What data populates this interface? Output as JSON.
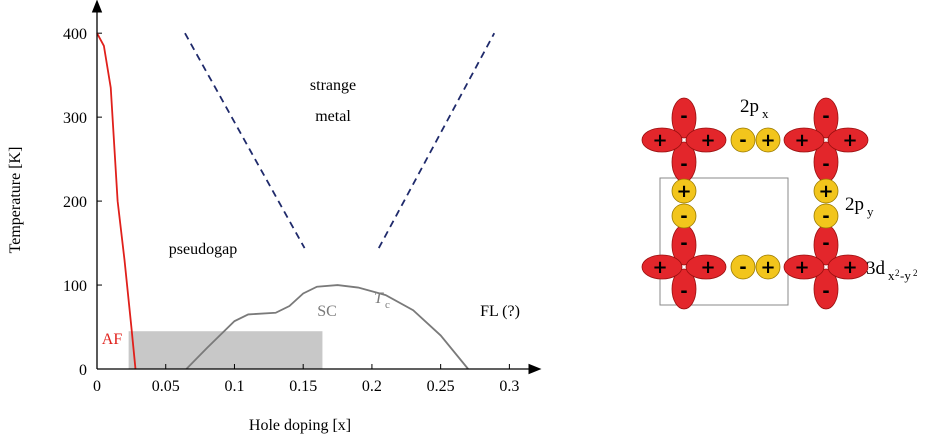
{
  "chart_data": {
    "type": "line",
    "x_label": "Hole doping [x]",
    "y_label": "Temperature [K]",
    "xlim": [
      0,
      0.315
    ],
    "ylim": [
      0,
      430
    ],
    "xticks": [
      0,
      0.05,
      0.1,
      0.15,
      0.2,
      0.25,
      0.3
    ],
    "yticks": [
      0,
      100,
      200,
      300,
      400
    ],
    "series": [
      {
        "color": "#e0201b",
        "dashed": false,
        "x": [
          0,
          0.005,
          0.01,
          0.015,
          0.02,
          0.025,
          0.028
        ],
        "values": [
          400,
          385,
          335,
          200,
          130,
          50,
          0
        ]
      },
      {
        "color": "#7a7a7a",
        "dashed": false,
        "x": [
          0.065,
          0.08,
          0.1,
          0.11,
          0.13,
          0.14,
          0.15,
          0.16,
          0.175,
          0.19,
          0.21,
          0.23,
          0.25,
          0.27
        ],
        "values": [
          0,
          25,
          57,
          65,
          67,
          75,
          90,
          98,
          100,
          97,
          88,
          70,
          40,
          0
        ]
      },
      {
        "color": "#1f2a6b",
        "dashed": true,
        "x": [
          0.064,
          0.151
        ],
        "values": [
          400,
          144
        ]
      },
      {
        "color": "#1f2a6b",
        "dashed": true,
        "x": [
          0.205,
          0.289
        ],
        "values": [
          144,
          400
        ]
      }
    ],
    "shaded_region": {
      "x": [
        0.023,
        0.164
      ],
      "values": [
        0,
        45
      ],
      "color": "#c8c8c8"
    },
    "annotations": {
      "strange": "strange",
      "metal": "metal",
      "pseudogap": "pseudogap",
      "sc": "SC",
      "tc_main": "T",
      "tc_sub": "c",
      "fl": "FL (?)",
      "af": "AF"
    }
  },
  "diagram": {
    "plus": "+",
    "minus": "-",
    "labels": [
      {
        "main": "2p",
        "sub": "x"
      },
      {
        "main": "2p",
        "sub": "y"
      },
      {
        "main": "3d",
        "sub": "x",
        "sup1": "2",
        "mid": "-y",
        "sup2": "2"
      }
    ]
  }
}
